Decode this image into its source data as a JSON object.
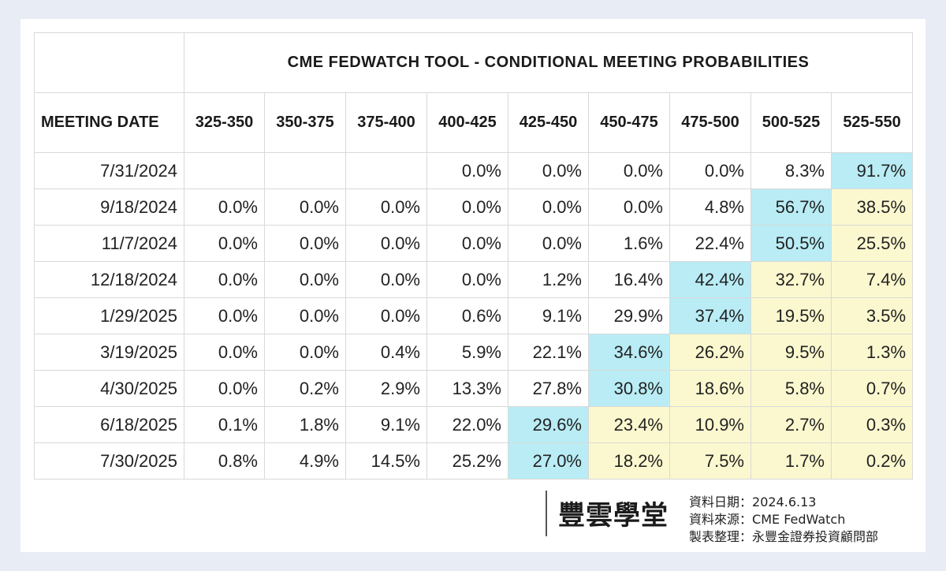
{
  "chart_data": {
    "type": "table",
    "title": "CME FEDWATCH TOOL - CONDITIONAL MEETING PROBABILITIES",
    "row_header": "MEETING DATE",
    "columns": [
      "325-350",
      "350-375",
      "375-400",
      "400-425",
      "425-450",
      "450-475",
      "475-500",
      "500-525",
      "525-550"
    ],
    "rows": [
      {
        "date": "7/31/2024",
        "values": [
          "",
          "",
          "",
          "0.0%",
          "0.0%",
          "0.0%",
          "0.0%",
          "8.3%",
          "91.7%"
        ]
      },
      {
        "date": "9/18/2024",
        "values": [
          "0.0%",
          "0.0%",
          "0.0%",
          "0.0%",
          "0.0%",
          "0.0%",
          "4.8%",
          "56.7%",
          "38.5%"
        ]
      },
      {
        "date": "11/7/2024",
        "values": [
          "0.0%",
          "0.0%",
          "0.0%",
          "0.0%",
          "0.0%",
          "1.6%",
          "22.4%",
          "50.5%",
          "25.5%"
        ]
      },
      {
        "date": "12/18/2024",
        "values": [
          "0.0%",
          "0.0%",
          "0.0%",
          "0.0%",
          "1.2%",
          "16.4%",
          "42.4%",
          "32.7%",
          "7.4%"
        ]
      },
      {
        "date": "1/29/2025",
        "values": [
          "0.0%",
          "0.0%",
          "0.0%",
          "0.6%",
          "9.1%",
          "29.9%",
          "37.4%",
          "19.5%",
          "3.5%"
        ]
      },
      {
        "date": "3/19/2025",
        "values": [
          "0.0%",
          "0.0%",
          "0.4%",
          "5.9%",
          "22.1%",
          "34.6%",
          "26.2%",
          "9.5%",
          "1.3%"
        ]
      },
      {
        "date": "4/30/2025",
        "values": [
          "0.0%",
          "0.2%",
          "2.9%",
          "13.3%",
          "27.8%",
          "30.8%",
          "18.6%",
          "5.8%",
          "0.7%"
        ]
      },
      {
        "date": "6/18/2025",
        "values": [
          "0.1%",
          "1.8%",
          "9.1%",
          "22.0%",
          "29.6%",
          "23.4%",
          "10.9%",
          "2.7%",
          "0.3%"
        ]
      },
      {
        "date": "7/30/2025",
        "values": [
          "0.8%",
          "4.9%",
          "14.5%",
          "25.2%",
          "27.0%",
          "18.2%",
          "7.5%",
          "1.7%",
          "0.2%"
        ]
      }
    ],
    "highlight": {
      "max_color": "#b9ecf5",
      "above_max_color": "#fbf8cf"
    }
  },
  "footer": {
    "logo_text": "豐雲學堂",
    "notes": [
      {
        "label": "資料日期：",
        "value": "2024.6.13"
      },
      {
        "label": "資料來源：",
        "value": "CME FedWatch"
      },
      {
        "label": "製表整理：",
        "value": "永豐金證券投資顧問部"
      }
    ]
  }
}
